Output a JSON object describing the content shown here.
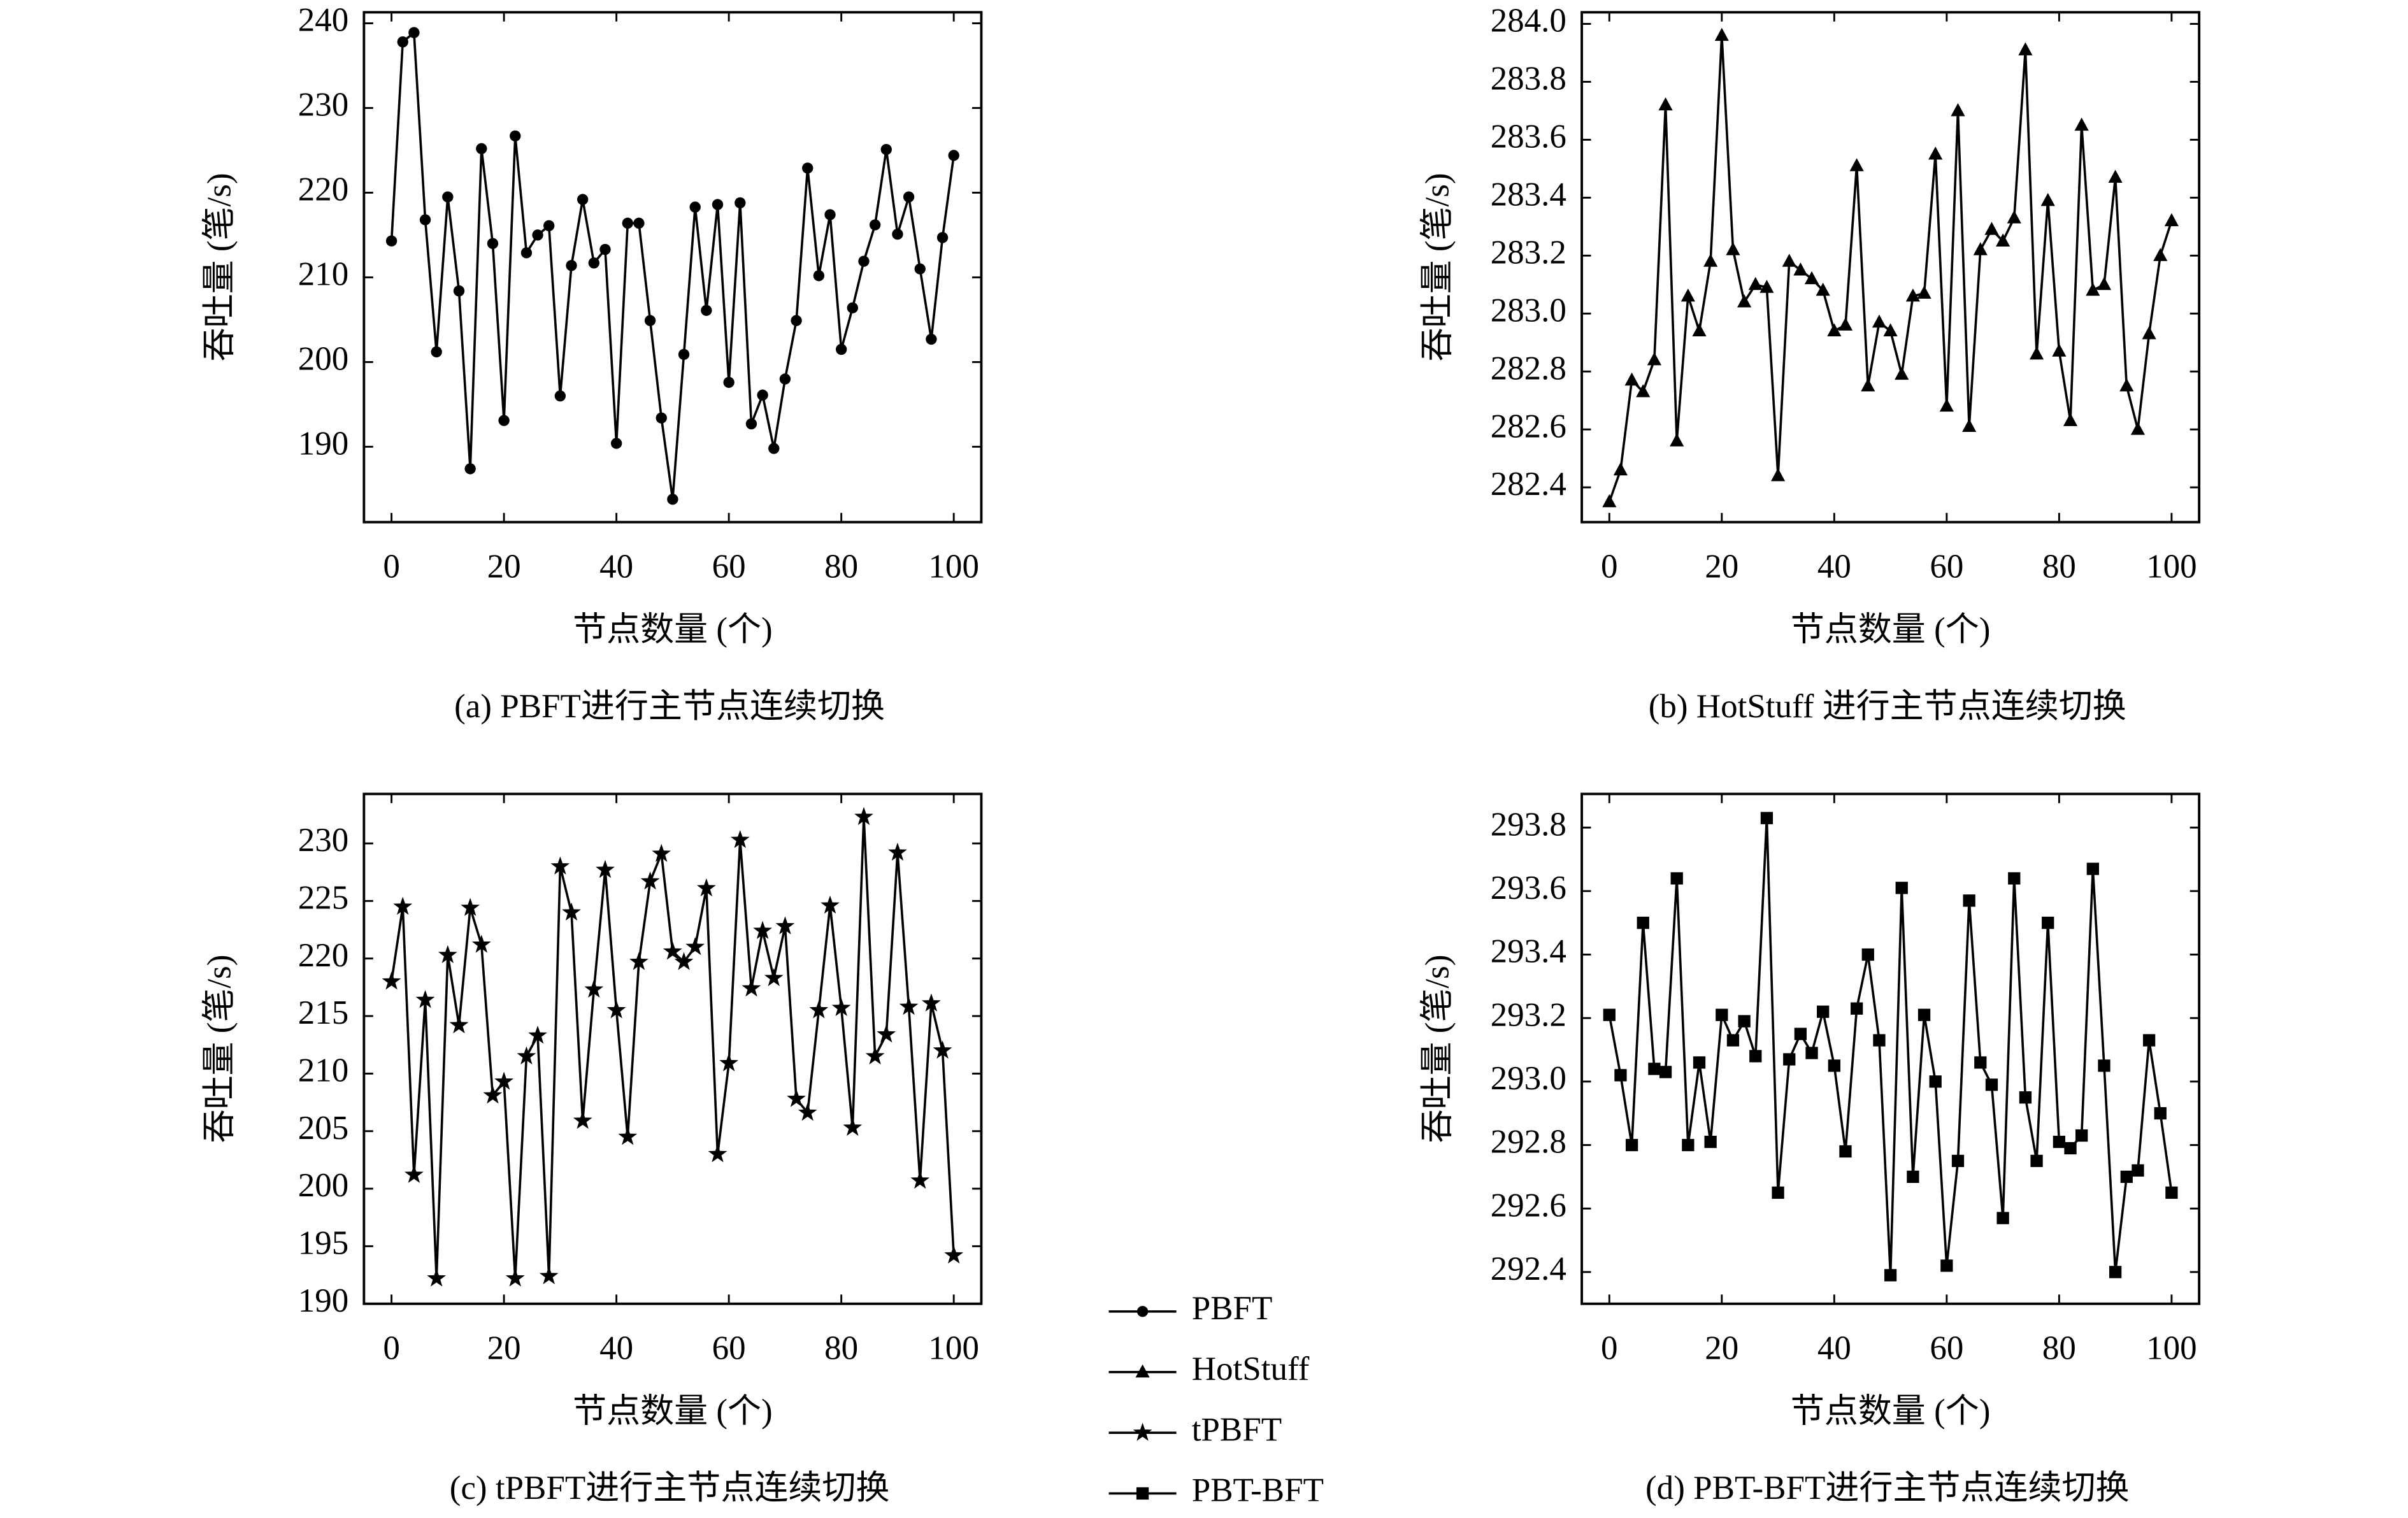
{
  "chart_data": [
    {
      "type": "line",
      "caption": "(a) PBFT进行主节点连续切换",
      "xlabel": "节点数量 (个)",
      "ylabel": "吞吐量 (笔/s)",
      "x": [
        0,
        2,
        4,
        6,
        8,
        10,
        12,
        14,
        16,
        18,
        20,
        22,
        24,
        26,
        28,
        30,
        32,
        34,
        36,
        38,
        40,
        42,
        44,
        46,
        48,
        50,
        52,
        54,
        56,
        58,
        60,
        62,
        64,
        66,
        68,
        70,
        72,
        74,
        76,
        78,
        80,
        82,
        84,
        86,
        88,
        90,
        92,
        94,
        96,
        98,
        100
      ],
      "xlim": [
        -4.9,
        104.9
      ],
      "xticks": [
        0,
        20,
        40,
        60,
        80,
        100
      ],
      "ylim": [
        181.1,
        241.3
      ],
      "yticks": [
        190,
        200,
        210,
        220,
        230,
        240
      ],
      "series": [
        {
          "name": "PBFT",
          "color": "#000000",
          "marker": "circle",
          "values": [
            214.3,
            237.8,
            238.9,
            216.8,
            201.2,
            219.5,
            208.4,
            187.4,
            225.2,
            214,
            193.1,
            226.7,
            212.9,
            215,
            216.1,
            196,
            211.4,
            219.2,
            211.7,
            213.3,
            190.4,
            216.4,
            216.4,
            204.9,
            193.4,
            183.8,
            200.9,
            218.3,
            206.1,
            218.6,
            197.6,
            218.8,
            192.7,
            196.1,
            189.8,
            198,
            204.9,
            222.9,
            210.2,
            217.4,
            201.5,
            206.4,
            211.9,
            216.2,
            225.1,
            215.1,
            219.5,
            211,
            202.7,
            214.7,
            224.4
          ]
        }
      ]
    },
    {
      "type": "line",
      "caption": "(b) HotStuff 进行主节点连续切换",
      "xlabel": "节点数量 (个)",
      "ylabel": "吞吐量 (笔/s)",
      "x": [
        0,
        2,
        4,
        6,
        8,
        10,
        12,
        14,
        16,
        18,
        20,
        22,
        24,
        26,
        28,
        30,
        32,
        34,
        36,
        38,
        40,
        42,
        44,
        46,
        48,
        50,
        52,
        54,
        56,
        58,
        60,
        62,
        64,
        66,
        68,
        70,
        72,
        74,
        76,
        78,
        80,
        82,
        84,
        86,
        88,
        90,
        92,
        94,
        96,
        98,
        100
      ],
      "xlim": [
        -4.9,
        104.9
      ],
      "xticks": [
        0,
        20,
        40,
        60,
        80,
        100
      ],
      "ylim": [
        282.28,
        284.04
      ],
      "yticks": [
        282.4,
        282.6,
        282.8,
        {
          "value": 283,
          "label": "283.0"
        },
        283.2,
        283.4,
        283.6,
        283.8,
        {
          "value": 284,
          "label": "284.0"
        }
      ],
      "series": [
        {
          "name": "HotStuff",
          "color": "#000000",
          "marker": "triangle",
          "values": [
            282.35,
            282.46,
            282.77,
            282.73,
            282.84,
            283.72,
            282.56,
            283.06,
            282.94,
            283.18,
            283.96,
            283.22,
            283.04,
            283.1,
            283.09,
            282.44,
            283.18,
            283.15,
            283.12,
            283.08,
            282.94,
            282.96,
            283.51,
            282.75,
            282.97,
            282.94,
            282.79,
            283.06,
            283.07,
            283.55,
            282.68,
            283.7,
            282.61,
            283.22,
            283.29,
            283.25,
            283.33,
            283.91,
            282.86,
            283.39,
            282.87,
            282.63,
            283.65,
            283.08,
            283.1,
            283.47,
            282.75,
            282.6,
            282.93,
            283.2,
            283.32
          ]
        }
      ]
    },
    {
      "type": "line",
      "caption": "(c) tPBFT进行主节点连续切换",
      "xlabel": "节点数量 (个)",
      "ylabel": "吞吐量 (笔/s)",
      "x": [
        0,
        2,
        4,
        6,
        8,
        10,
        12,
        14,
        16,
        18,
        20,
        22,
        24,
        26,
        28,
        30,
        32,
        34,
        36,
        38,
        40,
        42,
        44,
        46,
        48,
        50,
        52,
        54,
        56,
        58,
        60,
        62,
        64,
        66,
        68,
        70,
        72,
        74,
        76,
        78,
        80,
        82,
        84,
        86,
        88,
        90,
        92,
        94,
        96,
        98,
        100
      ],
      "xlim": [
        -4.9,
        104.9
      ],
      "xticks": [
        0,
        20,
        40,
        60,
        80,
        100
      ],
      "ylim": [
        190,
        234.3
      ],
      "yticks": [
        190,
        195,
        200,
        205,
        210,
        215,
        220,
        225,
        230
      ],
      "series": [
        {
          "name": "tPBFT",
          "color": "#000000",
          "marker": "star",
          "values": [
            218,
            224.5,
            201.2,
            216.4,
            192.2,
            220.3,
            214.2,
            224.4,
            221.2,
            208.1,
            209.3,
            192.2,
            211.5,
            213.3,
            192.4,
            228,
            224,
            205.9,
            217.3,
            227.7,
            215.5,
            204.5,
            219.7,
            226.7,
            229.1,
            220.6,
            219.7,
            221,
            226.1,
            203,
            210.9,
            230.3,
            217.4,
            222.4,
            218.3,
            222.8,
            207.8,
            206.6,
            215.5,
            224.6,
            215.7,
            205.3,
            232.3,
            211.5,
            213.4,
            229.2,
            215.8,
            200.7,
            216.1,
            212,
            194.2
          ]
        }
      ]
    },
    {
      "type": "line",
      "caption": "(d) PBT-BFT进行主节点连续切换",
      "xlabel": "节点数量 (个)",
      "ylabel": "吞吐量 (笔/s)",
      "x": [
        0,
        2,
        4,
        6,
        8,
        10,
        12,
        14,
        16,
        18,
        20,
        22,
        24,
        26,
        28,
        30,
        32,
        34,
        36,
        38,
        40,
        42,
        44,
        46,
        48,
        50,
        52,
        54,
        56,
        58,
        60,
        62,
        64,
        66,
        68,
        70,
        72,
        74,
        76,
        78,
        80,
        82,
        84,
        86,
        88,
        90,
        92,
        94,
        96,
        98,
        100
      ],
      "xlim": [
        -4.9,
        104.9
      ],
      "xticks": [
        0,
        20,
        40,
        60,
        80,
        100
      ],
      "ylim": [
        292.3,
        293.906
      ],
      "yticks": [
        292.4,
        292.6,
        292.8,
        {
          "value": 293,
          "label": "293.0"
        },
        293.2,
        293.4,
        293.6,
        293.8
      ],
      "series": [
        {
          "name": "PBT-BFT",
          "color": "#000000",
          "marker": "square",
          "values": [
            293.21,
            293.02,
            292.8,
            293.5,
            293.04,
            293.03,
            293.64,
            292.8,
            293.06,
            292.81,
            293.21,
            293.13,
            293.19,
            293.08,
            293.83,
            292.65,
            293.07,
            293.15,
            293.09,
            293.22,
            293.05,
            292.78,
            293.23,
            293.4,
            293.13,
            292.39,
            293.61,
            292.7,
            293.21,
            293,
            292.42,
            292.75,
            293.57,
            293.06,
            292.99,
            292.57,
            293.64,
            292.95,
            292.75,
            293.5,
            292.81,
            292.79,
            292.83,
            293.67,
            293.05,
            292.4,
            292.7,
            292.72,
            293.13,
            292.9,
            292.65
          ]
        }
      ]
    }
  ]
}
